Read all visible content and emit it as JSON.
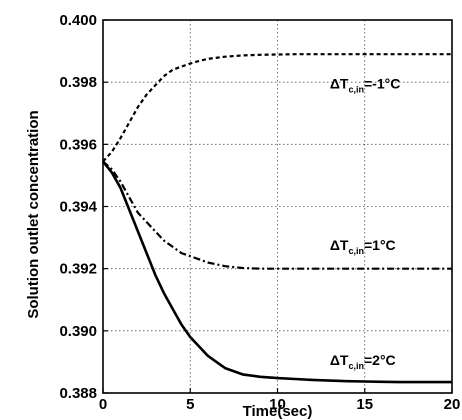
{
  "chart_data": {
    "type": "line",
    "title": "",
    "xlabel": "Time(sec)",
    "ylabel": "Solution outlet concentration",
    "xlim": [
      0,
      20
    ],
    "ylim": [
      0.388,
      0.4
    ],
    "x_ticks": [
      "0",
      "5",
      "10",
      "15",
      "20"
    ],
    "y_ticks": [
      "0.388",
      "0.390",
      "0.392",
      "0.394",
      "0.396",
      "0.398",
      "0.400"
    ],
    "grid": true,
    "legend": "none",
    "series": [
      {
        "style": "dashed",
        "annotation": {
          "prefix": "ΔT",
          "sub": "c,in",
          "value": "=-1°C"
        },
        "x": [
          0,
          0.5,
          1,
          1.5,
          2,
          2.5,
          3,
          3.5,
          4,
          4.5,
          5,
          5.5,
          6,
          7,
          8,
          9,
          10,
          11,
          12,
          13,
          14,
          15,
          16,
          17,
          18,
          19,
          20
        ],
        "y": [
          0.39545,
          0.39575,
          0.3962,
          0.3967,
          0.3972,
          0.3976,
          0.3979,
          0.3982,
          0.3984,
          0.3985,
          0.3986,
          0.39868,
          0.39875,
          0.39882,
          0.39886,
          0.39888,
          0.39889,
          0.3989,
          0.3989,
          0.3989,
          0.3989,
          0.3989,
          0.3989,
          0.3989,
          0.3989,
          0.3989,
          0.3989
        ]
      },
      {
        "style": "dashdot",
        "annotation": {
          "prefix": "ΔT",
          "sub": "c,in",
          "value": "=1°C"
        },
        "x": [
          0,
          0.5,
          1,
          1.5,
          2,
          2.5,
          3,
          3.5,
          4,
          4.5,
          5,
          5.5,
          6,
          7,
          8,
          9,
          10,
          11,
          12,
          13,
          14,
          15,
          16,
          17,
          18,
          19,
          20
        ],
        "y": [
          0.39545,
          0.3952,
          0.3948,
          0.3943,
          0.3938,
          0.3935,
          0.3932,
          0.3929,
          0.3927,
          0.3925,
          0.3924,
          0.3923,
          0.3922,
          0.39208,
          0.39202,
          0.392,
          0.392,
          0.392,
          0.392,
          0.392,
          0.392,
          0.392,
          0.392,
          0.392,
          0.392,
          0.392,
          0.392
        ]
      },
      {
        "style": "solid",
        "annotation": {
          "prefix": "ΔT",
          "sub": "c,in",
          "value": "=2°C"
        },
        "x": [
          0,
          0.5,
          1,
          1.5,
          2,
          2.5,
          3,
          3.5,
          4,
          4.5,
          5,
          5.5,
          6,
          6.5,
          7,
          8,
          9,
          10,
          11,
          12,
          13,
          14,
          15,
          16,
          17,
          18,
          19,
          20
        ],
        "y": [
          0.39545,
          0.3951,
          0.3946,
          0.3939,
          0.3932,
          0.3925,
          0.3918,
          0.3912,
          0.3907,
          0.3902,
          0.3898,
          0.3895,
          0.3892,
          0.389,
          0.3888,
          0.3886,
          0.38852,
          0.38848,
          0.38845,
          0.38842,
          0.3884,
          0.38838,
          0.38837,
          0.38836,
          0.38835,
          0.38835,
          0.38835,
          0.38835
        ]
      }
    ]
  }
}
